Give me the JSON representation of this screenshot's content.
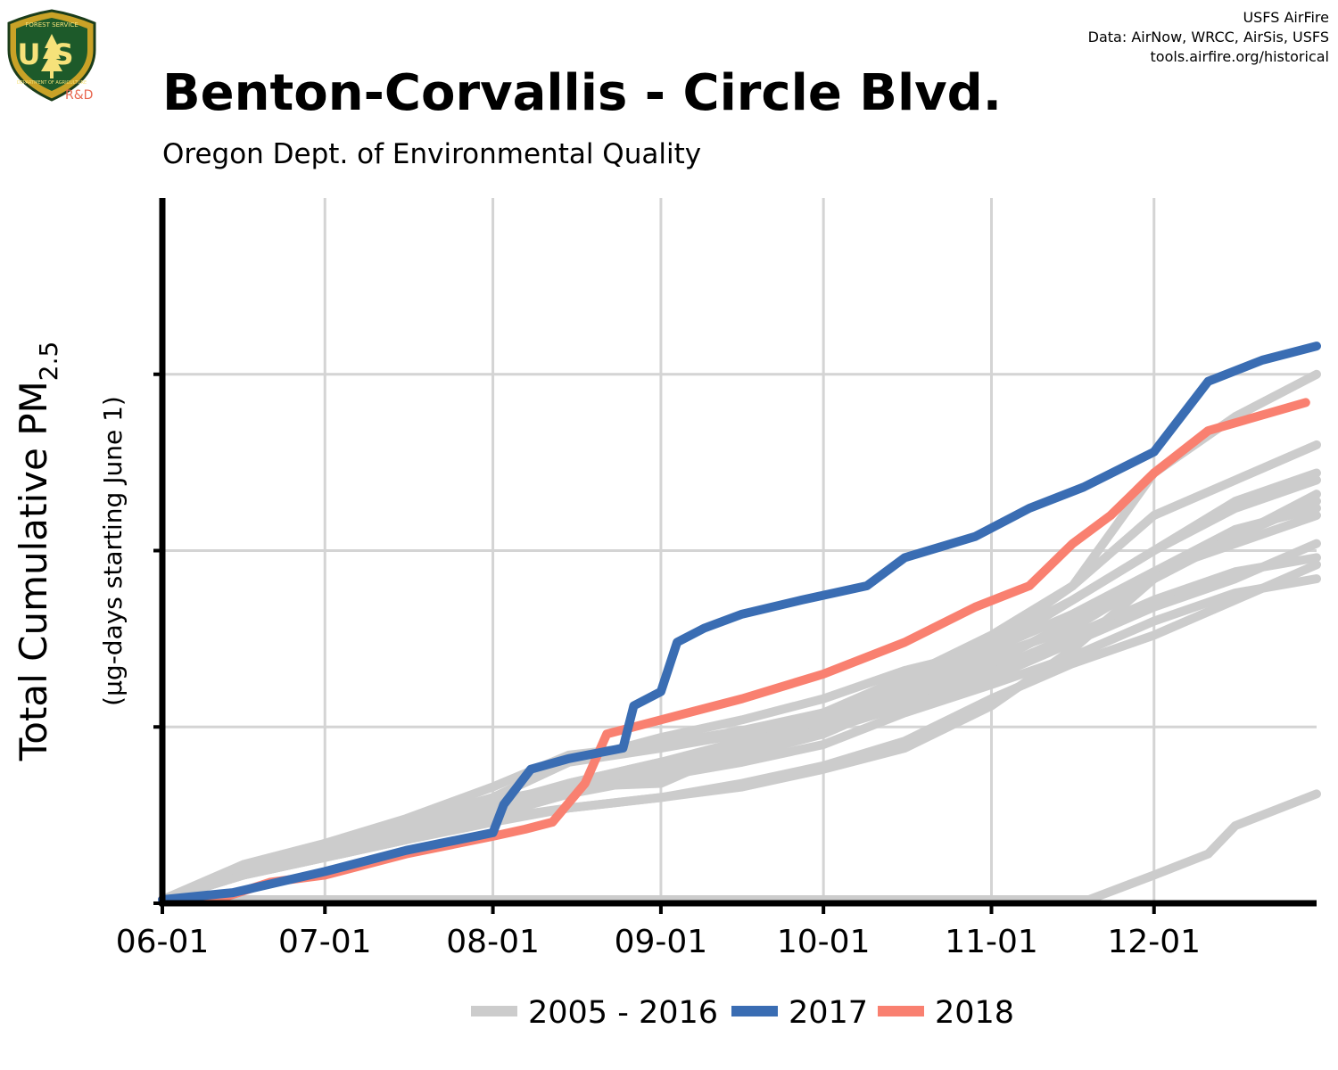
{
  "header": {
    "title": "Benton-Corvallis - Circle Blvd.",
    "subtitle": "Oregon Dept. of Environmental Quality",
    "credits": [
      "USFS AirFire",
      "Data: AirNow, WRCC, AirSis, USFS",
      "tools.airfire.org/historical"
    ],
    "logo": {
      "top_text": "FOREST SERVICE",
      "main_text": "US",
      "bottom_text": "DEPARTMENT OF AGRICULTURE",
      "tag": "R&D"
    }
  },
  "chart_data": {
    "type": "line",
    "title": "Benton-Corvallis - Circle Blvd.",
    "subtitle": "Oregon Dept. of Environmental Quality",
    "ylabel_main": "Total Cumulative PM",
    "ylabel_subscript": "2.5",
    "ylabel_note": "(µg-days starting June 1)",
    "x_tick_labels": [
      "06-01",
      "07-01",
      "08-01",
      "09-01",
      "10-01",
      "11-01",
      "12-01"
    ],
    "x_tick_days": [
      0,
      30,
      61,
      92,
      122,
      153,
      183
    ],
    "xlim": [
      0,
      213
    ],
    "ylim": [
      0,
      1.0
    ],
    "y_gridlines": [
      0.25,
      0.5,
      0.75
    ],
    "y_tick_labels_shown": false,
    "grid": true,
    "legend_position": "bottom",
    "colors": {
      "history": "#cccccc",
      "y2017": "#3a6db3",
      "y2018": "#f98070"
    },
    "series": [
      {
        "name": "2005 - 2016",
        "role": "history",
        "points": [
          [
            0,
            0.005
          ],
          [
            15,
            0.05
          ],
          [
            30,
            0.075
          ],
          [
            45,
            0.11
          ],
          [
            61,
            0.15
          ],
          [
            75,
            0.2
          ],
          [
            92,
            0.235
          ],
          [
            107,
            0.26
          ],
          [
            122,
            0.29
          ],
          [
            137,
            0.33
          ],
          [
            153,
            0.36
          ],
          [
            168,
            0.43
          ],
          [
            183,
            0.5
          ],
          [
            198,
            0.56
          ],
          [
            213,
            0.6
          ]
        ]
      },
      {
        "name": "2005 - 2016",
        "role": "history",
        "points": [
          [
            0,
            0.005
          ],
          [
            15,
            0.045
          ],
          [
            30,
            0.07
          ],
          [
            45,
            0.1
          ],
          [
            61,
            0.13
          ],
          [
            75,
            0.17
          ],
          [
            92,
            0.2
          ],
          [
            107,
            0.23
          ],
          [
            122,
            0.27
          ],
          [
            137,
            0.32
          ],
          [
            153,
            0.38
          ],
          [
            168,
            0.45
          ],
          [
            183,
            0.55
          ],
          [
            198,
            0.6
          ],
          [
            213,
            0.65
          ]
        ]
      },
      {
        "name": "2005 - 2016",
        "role": "history",
        "points": [
          [
            0,
            0.005
          ],
          [
            15,
            0.04
          ],
          [
            30,
            0.07
          ],
          [
            45,
            0.095
          ],
          [
            61,
            0.125
          ],
          [
            75,
            0.155
          ],
          [
            92,
            0.185
          ],
          [
            107,
            0.21
          ],
          [
            122,
            0.24
          ],
          [
            137,
            0.29
          ],
          [
            153,
            0.33
          ],
          [
            168,
            0.38
          ],
          [
            183,
            0.43
          ],
          [
            198,
            0.47
          ],
          [
            213,
            0.49
          ]
        ]
      },
      {
        "name": "2005 - 2016",
        "role": "history",
        "points": [
          [
            0,
            0.005
          ],
          [
            15,
            0.05
          ],
          [
            30,
            0.08
          ],
          [
            45,
            0.11
          ],
          [
            61,
            0.145
          ],
          [
            75,
            0.165
          ],
          [
            92,
            0.17
          ],
          [
            107,
            0.22
          ],
          [
            122,
            0.26
          ],
          [
            137,
            0.3
          ],
          [
            153,
            0.36
          ],
          [
            168,
            0.41
          ],
          [
            183,
            0.47
          ],
          [
            198,
            0.51
          ],
          [
            213,
            0.55
          ]
        ]
      },
      {
        "name": "2005 - 2016",
        "role": "history",
        "points": [
          [
            0,
            0.005
          ],
          [
            15,
            0.04
          ],
          [
            30,
            0.065
          ],
          [
            45,
            0.09
          ],
          [
            61,
            0.125
          ],
          [
            75,
            0.16
          ],
          [
            92,
            0.19
          ],
          [
            107,
            0.215
          ],
          [
            122,
            0.245
          ],
          [
            137,
            0.28
          ],
          [
            153,
            0.32
          ],
          [
            168,
            0.37
          ],
          [
            183,
            0.42
          ],
          [
            198,
            0.46
          ],
          [
            213,
            0.51
          ]
        ]
      },
      {
        "name": "2005 - 2016",
        "role": "history",
        "points": [
          [
            0,
            0.005
          ],
          [
            15,
            0.045
          ],
          [
            30,
            0.07
          ],
          [
            45,
            0.095
          ],
          [
            61,
            0.125
          ],
          [
            75,
            0.155
          ],
          [
            92,
            0.18
          ],
          [
            107,
            0.2
          ],
          [
            122,
            0.225
          ],
          [
            137,
            0.27
          ],
          [
            153,
            0.31
          ],
          [
            168,
            0.35
          ],
          [
            183,
            0.4
          ],
          [
            198,
            0.44
          ],
          [
            213,
            0.46
          ]
        ]
      },
      {
        "name": "2005 - 2016",
        "role": "history",
        "points": [
          [
            0,
            0.005
          ],
          [
            15,
            0.05
          ],
          [
            30,
            0.075
          ],
          [
            45,
            0.105
          ],
          [
            61,
            0.14
          ],
          [
            75,
            0.17
          ],
          [
            92,
            0.2
          ],
          [
            107,
            0.22
          ],
          [
            122,
            0.25
          ],
          [
            137,
            0.29
          ],
          [
            153,
            0.34
          ],
          [
            168,
            0.4
          ],
          [
            183,
            0.47
          ],
          [
            198,
            0.53
          ],
          [
            213,
            0.56
          ]
        ]
      },
      {
        "name": "2005 - 2016",
        "role": "history",
        "points": [
          [
            0,
            0.005
          ],
          [
            15,
            0.04
          ],
          [
            30,
            0.065
          ],
          [
            45,
            0.09
          ],
          [
            61,
            0.12
          ],
          [
            75,
            0.135
          ],
          [
            92,
            0.15
          ],
          [
            107,
            0.17
          ],
          [
            122,
            0.195
          ],
          [
            137,
            0.23
          ],
          [
            153,
            0.29
          ],
          [
            168,
            0.34
          ],
          [
            183,
            0.38
          ],
          [
            198,
            0.43
          ],
          [
            213,
            0.48
          ]
        ]
      },
      {
        "name": "2005 - 2016",
        "role": "history",
        "points": [
          [
            0,
            0.005
          ],
          [
            15,
            0.05
          ],
          [
            30,
            0.08
          ],
          [
            45,
            0.115
          ],
          [
            61,
            0.15
          ],
          [
            75,
            0.2
          ],
          [
            92,
            0.22
          ],
          [
            107,
            0.24
          ],
          [
            122,
            0.27
          ],
          [
            137,
            0.31
          ],
          [
            153,
            0.37
          ],
          [
            168,
            0.43
          ],
          [
            183,
            0.5
          ],
          [
            198,
            0.57
          ],
          [
            213,
            0.61
          ]
        ]
      },
      {
        "name": "2005 - 2016",
        "role": "history",
        "points": [
          [
            0,
            0.005
          ],
          [
            15,
            0.045
          ],
          [
            30,
            0.075
          ],
          [
            45,
            0.1
          ],
          [
            61,
            0.13
          ],
          [
            75,
            0.165
          ],
          [
            92,
            0.195
          ],
          [
            107,
            0.225
          ],
          [
            122,
            0.26
          ],
          [
            137,
            0.3
          ],
          [
            153,
            0.35
          ],
          [
            168,
            0.39
          ],
          [
            183,
            0.46
          ],
          [
            198,
            0.52
          ],
          [
            213,
            0.58
          ]
        ]
      },
      {
        "name": "2005 - 2016",
        "role": "history",
        "points": [
          [
            0,
            0.005
          ],
          [
            15,
            0.04
          ],
          [
            30,
            0.065
          ],
          [
            45,
            0.09
          ],
          [
            61,
            0.115
          ],
          [
            75,
            0.135
          ],
          [
            92,
            0.15
          ],
          [
            107,
            0.165
          ],
          [
            122,
            0.19
          ],
          [
            137,
            0.22
          ],
          [
            153,
            0.28
          ],
          [
            168,
            0.36
          ],
          [
            183,
            0.46
          ],
          [
            198,
            0.52
          ],
          [
            213,
            0.57
          ]
        ]
      },
      {
        "name": "2005 - 2016",
        "role": "history",
        "points": [
          [
            0,
            0.005
          ],
          [
            15,
            0.055
          ],
          [
            30,
            0.085
          ],
          [
            45,
            0.12
          ],
          [
            61,
            0.165
          ],
          [
            75,
            0.21
          ],
          [
            92,
            0.225
          ],
          [
            107,
            0.245
          ],
          [
            122,
            0.27
          ],
          [
            137,
            0.31
          ],
          [
            153,
            0.37
          ],
          [
            168,
            0.45
          ],
          [
            183,
            0.61
          ],
          [
            198,
            0.69
          ],
          [
            213,
            0.75
          ]
        ]
      },
      {
        "name": "2005 - 2016",
        "role": "history",
        "points": [
          [
            0,
            0.005
          ],
          [
            15,
            0.005
          ],
          [
            30,
            0.005
          ],
          [
            61,
            0.005
          ],
          [
            92,
            0.005
          ],
          [
            122,
            0.005
          ],
          [
            153,
            0.005
          ],
          [
            171,
            0.005
          ],
          [
            183,
            0.04
          ],
          [
            193,
            0.07
          ],
          [
            198,
            0.11
          ],
          [
            213,
            0.155
          ]
        ]
      },
      {
        "name": "2017",
        "role": "y2017",
        "points": [
          [
            0,
            0.005
          ],
          [
            13,
            0.015
          ],
          [
            30,
            0.045
          ],
          [
            45,
            0.075
          ],
          [
            61,
            0.1
          ],
          [
            63,
            0.14
          ],
          [
            68,
            0.19
          ],
          [
            75,
            0.205
          ],
          [
            85,
            0.22
          ],
          [
            87,
            0.28
          ],
          [
            92,
            0.3
          ],
          [
            95,
            0.37
          ],
          [
            100,
            0.39
          ],
          [
            107,
            0.41
          ],
          [
            118,
            0.43
          ],
          [
            130,
            0.45
          ],
          [
            137,
            0.49
          ],
          [
            150,
            0.52
          ],
          [
            160,
            0.56
          ],
          [
            170,
            0.59
          ],
          [
            183,
            0.64
          ],
          [
            193,
            0.74
          ],
          [
            203,
            0.77
          ],
          [
            213,
            0.79
          ]
        ]
      },
      {
        "name": "2018",
        "role": "y2018",
        "points": [
          [
            0,
            0.005
          ],
          [
            10,
            0.005
          ],
          [
            20,
            0.03
          ],
          [
            30,
            0.04
          ],
          [
            45,
            0.07
          ],
          [
            61,
            0.095
          ],
          [
            67,
            0.105
          ],
          [
            72,
            0.115
          ],
          [
            78,
            0.17
          ],
          [
            82,
            0.24
          ],
          [
            92,
            0.26
          ],
          [
            107,
            0.29
          ],
          [
            122,
            0.325
          ],
          [
            137,
            0.37
          ],
          [
            150,
            0.42
          ],
          [
            160,
            0.45
          ],
          [
            168,
            0.51
          ],
          [
            175,
            0.55
          ],
          [
            183,
            0.61
          ],
          [
            193,
            0.67
          ],
          [
            211,
            0.71
          ]
        ]
      }
    ],
    "legend": [
      {
        "label": "2005 - 2016",
        "color": "#cccccc"
      },
      {
        "label": "2017",
        "color": "#3a6db3"
      },
      {
        "label": "2018",
        "color": "#f98070"
      }
    ]
  }
}
